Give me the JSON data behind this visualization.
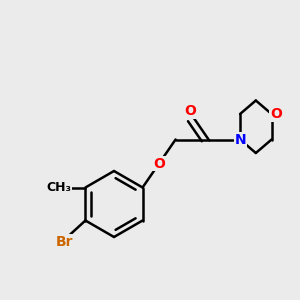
{
  "background_color": "#ebebeb",
  "bond_color": "#000000",
  "bond_width": 1.8,
  "atom_colors": {
    "O": "#ff0000",
    "N": "#0000ff",
    "Br": "#cc6600",
    "C": "#000000"
  },
  "font_size": 10,
  "fig_size": [
    3.0,
    3.0
  ],
  "dpi": 100,
  "xlim": [
    0,
    10
  ],
  "ylim": [
    0,
    10
  ]
}
